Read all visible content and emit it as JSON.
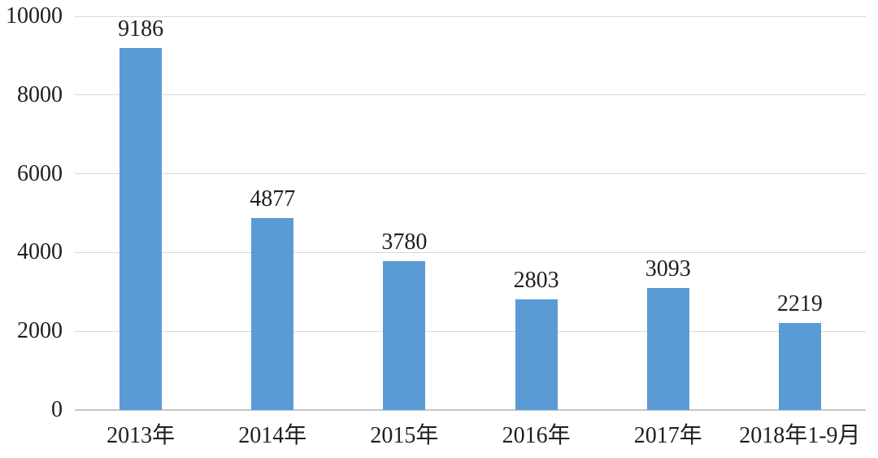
{
  "chart_data": {
    "type": "bar",
    "categories": [
      "2013年",
      "2014年",
      "2015年",
      "2016年",
      "2017年",
      "2018年1-9月"
    ],
    "values": [
      9186,
      4877,
      3780,
      2803,
      3093,
      2219
    ],
    "data_labels": [
      "9186",
      "4877",
      "3780",
      "2803",
      "3093",
      "2219"
    ],
    "title": "",
    "xlabel": "",
    "ylabel": "",
    "ylim": [
      0,
      10000
    ],
    "yticks": [
      0,
      2000,
      4000,
      6000,
      8000,
      10000
    ],
    "ytick_labels": [
      "0",
      "2000",
      "4000",
      "6000",
      "8000",
      "10000"
    ],
    "grid": true,
    "legend": false,
    "colors": {
      "bar": "#5B9BD5",
      "gridline": "#D9D9D9",
      "axis_line": "#C6C6C6",
      "text": "#1f1f1f",
      "background": "#FFFFFF"
    }
  }
}
